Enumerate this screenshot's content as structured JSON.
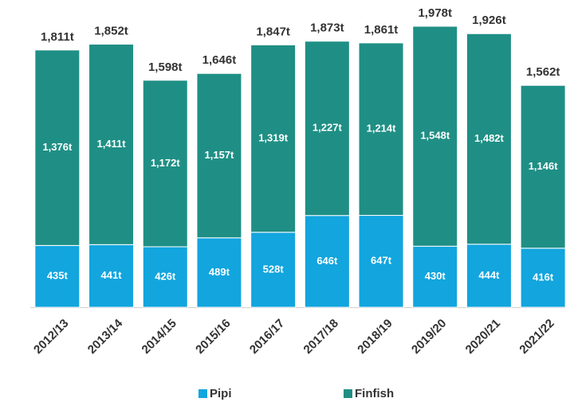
{
  "chart_data": {
    "type": "stacked_bar",
    "categories": [
      "2012/13",
      "2013/14",
      "2014/15",
      "2015/16",
      "2016/17",
      "2017/18",
      "2018/19",
      "2019/20",
      "2020/21",
      "2021/22"
    ],
    "series": [
      {
        "name": "Pipi",
        "color": "#12a5de",
        "values": [
          435,
          441,
          426,
          489,
          528,
          646,
          647,
          430,
          444,
          416
        ],
        "value_labels": [
          "435t",
          "441t",
          "426t",
          "489t",
          "528t",
          "646t",
          "647t",
          "430t",
          "444t",
          "416t"
        ]
      },
      {
        "name": "Finfish",
        "color": "#1f8f85",
        "values": [
          1376,
          1411,
          1172,
          1157,
          1319,
          1227,
          1214,
          1548,
          1482,
          1146
        ],
        "value_labels": [
          "1,376t",
          "1,411t",
          "1,172t",
          "1,157t",
          "1,319t",
          "1,227t",
          "1,214t",
          "1,548t",
          "1,482t",
          "1,146t"
        ]
      }
    ],
    "total_labels": [
      "1,811t",
      "1,852t",
      "1,598t",
      "1,646t",
      "1,847t",
      "1,873t",
      "1,861t",
      "1,978t",
      "1,926t",
      "1,562t"
    ],
    "legend": "bottom"
  }
}
